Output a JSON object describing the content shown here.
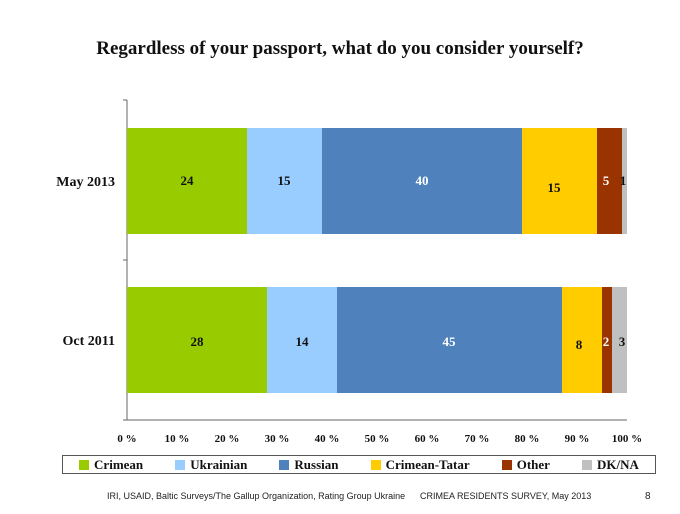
{
  "chart_data": {
    "type": "bar",
    "orientation": "horizontal",
    "stacked": true,
    "title": "Regardless of your passport, what do you consider yourself?",
    "categories": [
      "May 2013",
      "Oct 2011"
    ],
    "series": [
      {
        "name": "Crimean",
        "color": "#99cc00",
        "values": [
          24,
          28
        ],
        "labels": [
          "24",
          "28"
        ]
      },
      {
        "name": "Ukrainian",
        "color": "#99ccff",
        "values": [
          15,
          14
        ],
        "labels": [
          "15",
          "14"
        ]
      },
      {
        "name": "Russian",
        "color": "#4f81bd",
        "values": [
          40,
          45
        ],
        "labels": [
          "40",
          "45"
        ]
      },
      {
        "name": "Crimean-Tatar",
        "color": "#ffcc00",
        "values": [
          15,
          8
        ],
        "labels": [
          "15",
          "8"
        ]
      },
      {
        "name": "Other",
        "color": "#993300",
        "values": [
          5,
          2
        ],
        "labels": [
          "5",
          "2"
        ]
      },
      {
        "name": "DK/NA",
        "color": "#c0c0c0",
        "values": [
          1,
          3
        ],
        "labels": [
          "1",
          "3"
        ]
      }
    ],
    "xlim": [
      0,
      100
    ],
    "x_ticks": [
      "0 %",
      "10 %",
      "20 %",
      "30 %",
      "40 %",
      "50 %",
      "60 %",
      "70 %",
      "80 %",
      "90 %",
      "100 %"
    ],
    "legend_position": "bottom"
  },
  "footer": {
    "source": "IRI, USAID,  Baltic Surveys/The Gallup Organization, Rating Group Ukraine",
    "survey": "CRIMEA RESIDENTS SURVEY, May 2013",
    "page": "8"
  }
}
